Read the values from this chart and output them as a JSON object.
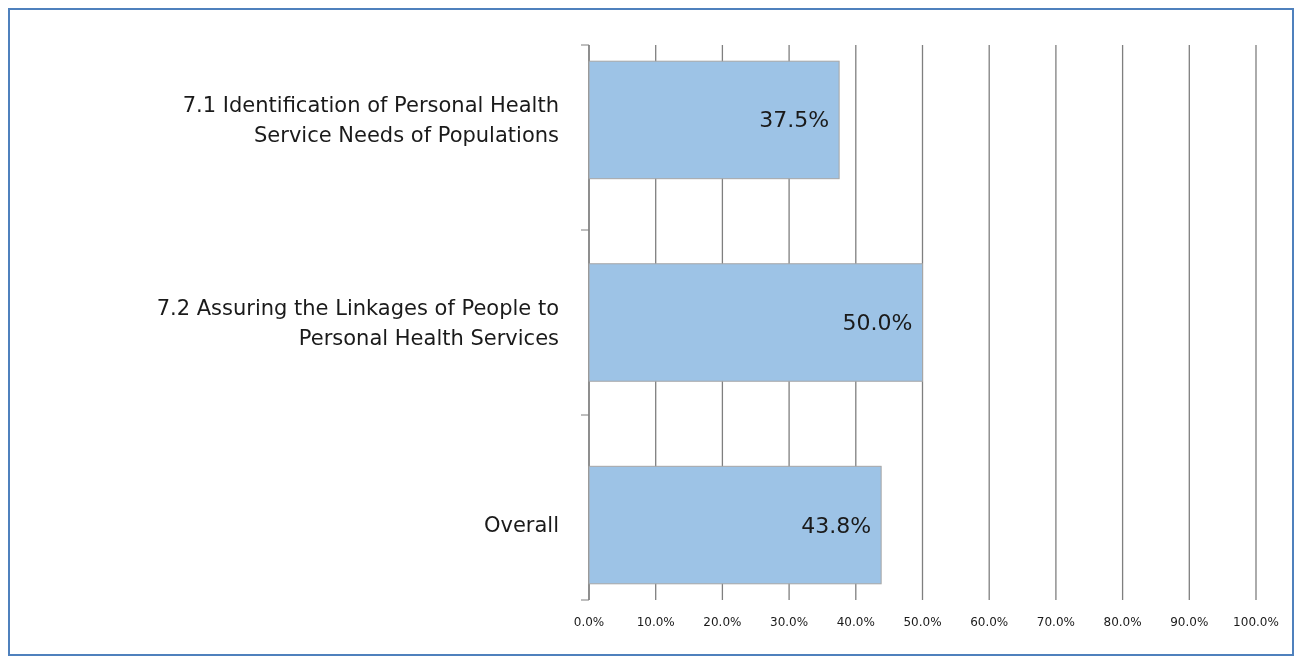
{
  "chart_data": {
    "type": "bar",
    "orientation": "horizontal",
    "categories": [
      "7.1 Identification of Personal Health Service Needs of Populations",
      "7.2 Assuring the Linkages of People to Personal Health Services",
      "Overall"
    ],
    "values": [
      37.5,
      50.0,
      43.8
    ],
    "value_labels": [
      "37.5%",
      "50.0%",
      "43.8%"
    ],
    "color": "#9dc3e6",
    "xlim": [
      0,
      100
    ],
    "xticks": [
      {
        "value": 0,
        "label": "0.0%"
      },
      {
        "value": 10,
        "label": "10.0%"
      },
      {
        "value": 20,
        "label": "20.0%"
      },
      {
        "value": 30,
        "label": "30.0%"
      },
      {
        "value": 40,
        "label": "40.0%"
      },
      {
        "value": 50,
        "label": "50.0%"
      },
      {
        "value": 60,
        "label": "60.0%"
      },
      {
        "value": 70,
        "label": "70.0%"
      },
      {
        "value": 80,
        "label": "80.0%"
      },
      {
        "value": 90,
        "label": "90.0%"
      },
      {
        "value": 100,
        "label": "100.0%"
      }
    ],
    "grid": "x"
  }
}
